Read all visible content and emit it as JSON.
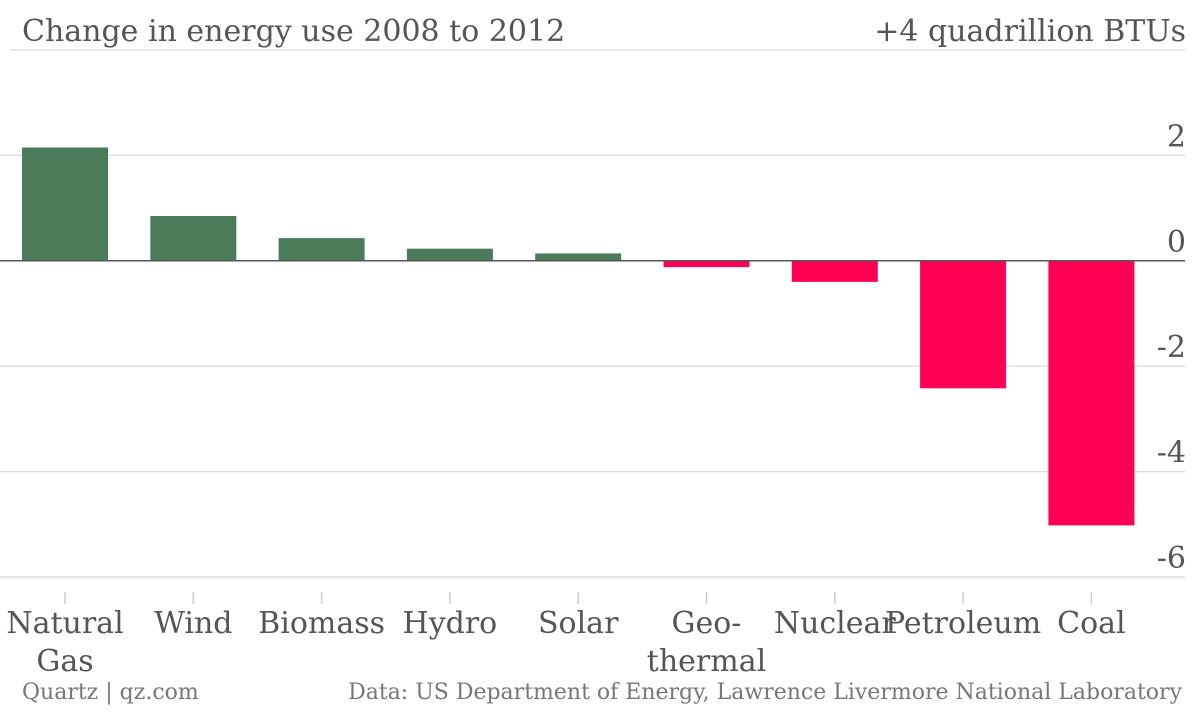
{
  "header": {
    "title": "Change in energy use 2008 to 2012",
    "top_label": "+4 quadrillion BTUs"
  },
  "footer": {
    "source_left": "Quartz | qz.com",
    "source_right": "Data: US Department of Energy, Lawrence Livermore National Laboratory"
  },
  "colors": {
    "positive": "#4a7c59",
    "negative": "#ff0055",
    "grid": "#dddddd",
    "zero_line": "#555555"
  },
  "chart_data": {
    "type": "bar",
    "categories": [
      [
        "Natural",
        "Gas"
      ],
      [
        "Wind"
      ],
      [
        "Biomass"
      ],
      [
        "Hydro"
      ],
      [
        "Solar"
      ],
      [
        "Geo-",
        "thermal"
      ],
      [
        "Nuclear"
      ],
      [
        "Petroleum"
      ],
      [
        "Coal"
      ]
    ],
    "values": [
      2.15,
      0.85,
      0.43,
      0.23,
      0.14,
      -0.12,
      -0.4,
      -2.42,
      -5.02
    ],
    "ylim": [
      -6,
      4
    ],
    "yticks": [
      2,
      0,
      -2,
      -4,
      -6
    ],
    "ytick_labels": [
      "2",
      "0",
      "-2",
      "-4",
      "-6"
    ],
    "grid": true,
    "title": "Change in energy use 2008 to 2012",
    "ylabel": "",
    "xlabel": ""
  }
}
